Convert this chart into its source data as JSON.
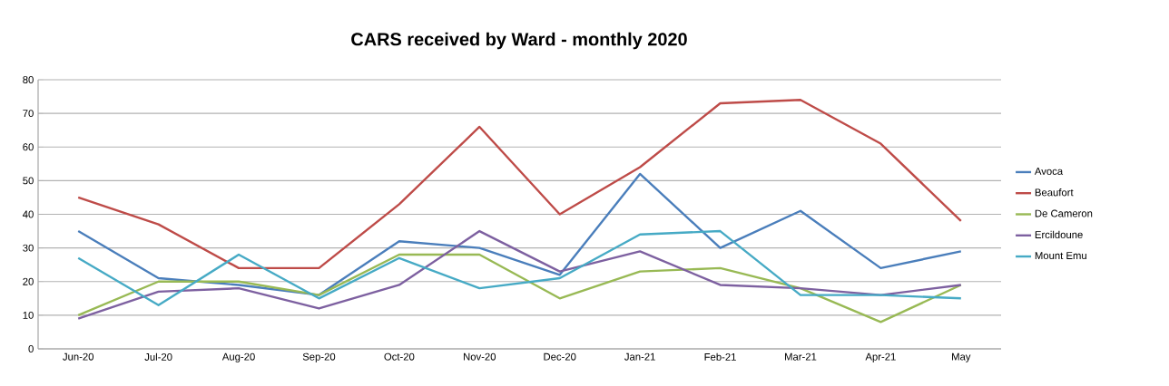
{
  "chart_data": {
    "type": "line",
    "title": "CARS received by Ward - monthly 2020",
    "categories": [
      "Jun-20",
      "Jul-20",
      "Aug-20",
      "Sep-20",
      "Oct-20",
      "Nov-20",
      "Dec-20",
      "Jan-21",
      "Feb-21",
      "Mar-21",
      "Apr-21",
      "May"
    ],
    "series": [
      {
        "name": "Avoca",
        "color": "#4a7ebb",
        "values": [
          35,
          21,
          19,
          16,
          32,
          30,
          22,
          52,
          30,
          41,
          24,
          29
        ]
      },
      {
        "name": "Beaufort",
        "color": "#be4b48",
        "values": [
          45,
          37,
          24,
          24,
          43,
          66,
          40,
          54,
          73,
          74,
          61,
          38
        ]
      },
      {
        "name": "De Cameron",
        "color": "#98b954",
        "values": [
          10,
          20,
          20,
          16,
          28,
          28,
          15,
          23,
          24,
          18,
          8,
          19
        ]
      },
      {
        "name": "Ercildoune",
        "color": "#7d60a0",
        "values": [
          9,
          17,
          18,
          12,
          19,
          35,
          23,
          29,
          19,
          18,
          16,
          19
        ]
      },
      {
        "name": "Mount Emu",
        "color": "#46aac5",
        "values": [
          27,
          13,
          28,
          15,
          27,
          18,
          21,
          34,
          35,
          16,
          16,
          15
        ]
      }
    ],
    "ylim": [
      0,
      80
    ],
    "yticks": [
      0,
      10,
      20,
      30,
      40,
      50,
      60,
      70,
      80
    ],
    "grid": "y",
    "legend": "right",
    "marker": "none",
    "line_style": "solid"
  }
}
